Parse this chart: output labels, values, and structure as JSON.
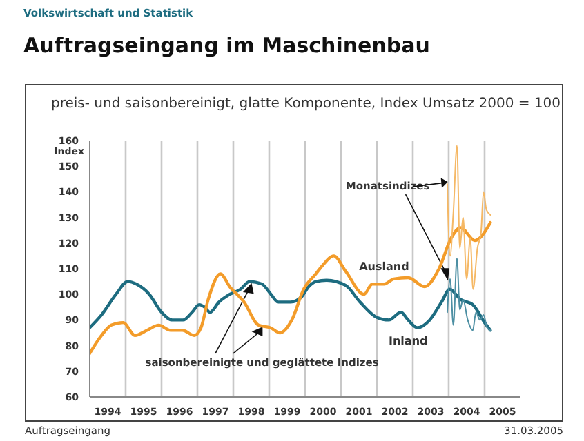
{
  "chart_data": {
    "type": "line",
    "title": "Auftragseingang im Maschinenbau",
    "subtitle": "preis- und saisonbereinigt, glatte Komponente, Index Umsatz 2000 = 100",
    "ylabel": "Index",
    "annotations": [
      "Volkswirtschaft und Statistik",
      {
        "text": "Monatsindizes",
        "x": 2003.96,
        "y": 143
      },
      {
        "text": "saisonbereinigte und geglättete Indizes",
        "x": 1998.45,
        "y": 105
      },
      "Auftragseingang",
      "31.03.2005"
    ],
    "xlim": [
      1994,
      2006
    ],
    "xticks": [
      {
        "value": 1995,
        "label": null
      },
      {
        "value": 1996,
        "label": null
      },
      {
        "value": 1997,
        "label": null
      },
      {
        "value": 1998,
        "label": null
      },
      {
        "value": 1999,
        "label": null
      },
      {
        "value": 2000,
        "label": null
      },
      {
        "value": 2001,
        "label": null
      },
      {
        "value": 2002,
        "label": null
      },
      {
        "value": 2003,
        "label": null
      },
      {
        "value": 2004,
        "label": null
      },
      {
        "value": 2005,
        "label": null
      },
      {
        "value": 1994.5,
        "label": "1994"
      },
      {
        "value": 1995.5,
        "label": "1995"
      },
      {
        "value": 1996.5,
        "label": "1996"
      },
      {
        "value": 1997.5,
        "label": "1997"
      },
      {
        "value": 1998.5,
        "label": "1998"
      },
      {
        "value": 1999.5,
        "label": "1999"
      },
      {
        "value": 2000.5,
        "label": "2000"
      },
      {
        "value": 2001.5,
        "label": "2001"
      },
      {
        "value": 2002.5,
        "label": "2002"
      },
      {
        "value": 2003.5,
        "label": "2003"
      },
      {
        "value": 2004.5,
        "label": "2004"
      },
      {
        "value": 2005.5,
        "label": "2005"
      }
    ],
    "ylim": [
      60,
      160
    ],
    "yticks": [
      60,
      70,
      80,
      90,
      100,
      110,
      120,
      130,
      140,
      150,
      160
    ],
    "grid": "x",
    "marker": "none",
    "line_style": "solid",
    "series": [
      {
        "name": "Inland",
        "color": "#1d6c80",
        "x": [
          1994.0,
          1994.33,
          1994.73,
          1995.06,
          1995.3,
          1995.66,
          1996.0,
          1996.3,
          1996.6,
          1996.85,
          1997.05,
          1997.2,
          1997.35,
          1997.6,
          1997.9,
          1998.2,
          1998.45,
          1998.8,
          1999.05,
          1999.25,
          1999.6,
          1999.9,
          2000.1,
          2000.3,
          2000.6,
          2001.13,
          2001.53,
          2002.0,
          2002.33,
          2002.67,
          2002.87,
          2003.13,
          2003.47,
          2003.8,
          2004.03,
          2004.33,
          2004.67,
          2005.0,
          2005.16
        ],
        "values": [
          87,
          92,
          100,
          105,
          104,
          100,
          93,
          90,
          90,
          93,
          96,
          95,
          93,
          97,
          100,
          102,
          105,
          104,
          100,
          97,
          97,
          99,
          103,
          105,
          105.5,
          103.5,
          97,
          91,
          90,
          93,
          90,
          87,
          90,
          97,
          102,
          98,
          96,
          89,
          86
        ]
      },
      {
        "name": "Ausland",
        "color": "#f39c2a",
        "x": [
          1994.0,
          1994.33,
          1994.6,
          1994.93,
          1995.26,
          1995.6,
          1995.92,
          1996.25,
          1996.58,
          1996.91,
          1997.1,
          1997.3,
          1997.64,
          1997.9,
          1998.3,
          1998.7,
          1999.03,
          1999.3,
          1999.63,
          1999.96,
          2000.3,
          2000.47,
          2000.8,
          2001.13,
          2001.64,
          2001.87,
          2002.2,
          2002.47,
          2002.87,
          2003.33,
          2003.73,
          2004.07,
          2004.33,
          2004.73,
          2005.16
        ],
        "values": [
          77,
          84,
          88,
          89,
          84,
          86,
          88,
          86,
          86,
          84,
          87,
          98,
          108,
          103,
          97,
          88,
          87,
          85,
          90,
          102,
          108,
          111,
          115,
          109,
          100,
          104,
          104,
          106,
          106.5,
          103,
          110,
          122,
          126,
          121,
          128
        ]
      },
      {
        "color": "#f5b865",
        "x": [
          2003.96,
          2004.04,
          2004.13,
          2004.23,
          2004.31,
          2004.4,
          2004.5,
          2004.6,
          2004.68,
          2004.8,
          2004.9,
          2004.97,
          2005.05,
          2005.16
        ],
        "values": [
          143,
          115,
          132,
          158,
          118,
          130,
          106,
          122,
          102,
          118,
          124,
          140,
          133,
          131
        ]
      },
      {
        "color": "#4d8fa3",
        "x": [
          2003.96,
          2004.04,
          2004.13,
          2004.23,
          2004.31,
          2004.4,
          2004.53,
          2004.67,
          2004.76,
          2004.87,
          2004.97,
          2005.07,
          2005.16
        ],
        "values": [
          93,
          106,
          88,
          114,
          94,
          98,
          90,
          86,
          93,
          90,
          92,
          87,
          86
        ]
      }
    ]
  }
}
